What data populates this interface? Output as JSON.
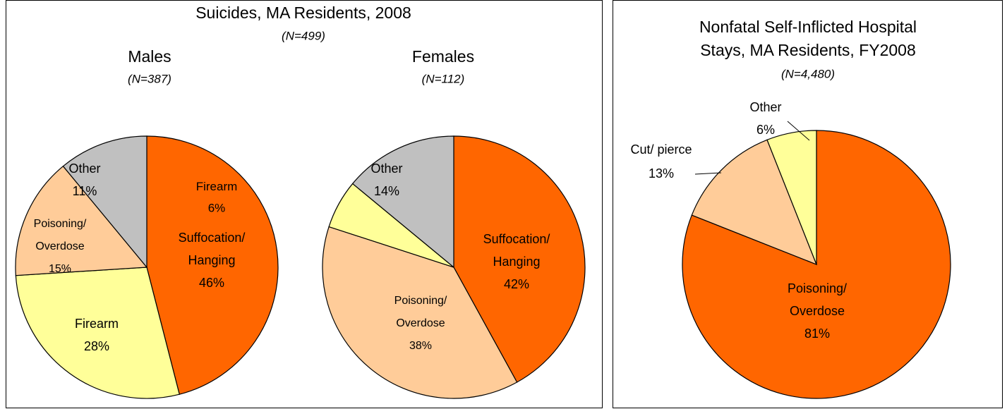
{
  "left_panel": {
    "title": "Suicides, MA Residents, 2008",
    "subtitle": "(N=499)"
  },
  "chart_data": [
    {
      "type": "pie",
      "title": "Males",
      "subtitle": "(N=387)",
      "categories": [
        "Suffocation/ Hanging",
        "Firearm",
        "Poisoning/ Overdose",
        "Other"
      ],
      "values": [
        46,
        28,
        15,
        11
      ],
      "value_labels": [
        "46%",
        "28%",
        "15%",
        "11%"
      ],
      "colors": [
        "#ff6600",
        "#ffff99",
        "#ffcc99",
        "#c0c0c0"
      ]
    },
    {
      "type": "pie",
      "title": "Females",
      "subtitle": "(N=112)",
      "categories": [
        "Suffocation/ Hanging",
        "Poisoning/ Overdose",
        "Firearm",
        "Other"
      ],
      "values": [
        42,
        38,
        6,
        14
      ],
      "value_labels": [
        "42%",
        "38%",
        "6%",
        "14%"
      ],
      "colors": [
        "#ff6600",
        "#ffcc99",
        "#ffff99",
        "#c0c0c0"
      ]
    },
    {
      "type": "pie",
      "title": "Nonfatal Self-Inflicted Hospital Stays, MA Residents, FY2008",
      "subtitle": "(N=4,480)",
      "categories": [
        "Poisoning/ Overdose",
        "Cut/ pierce",
        "Other"
      ],
      "values": [
        81,
        13,
        6
      ],
      "value_labels": [
        "81%",
        "13%",
        "6%"
      ],
      "colors": [
        "#ff6600",
        "#ffcc99",
        "#ffff99"
      ]
    }
  ]
}
